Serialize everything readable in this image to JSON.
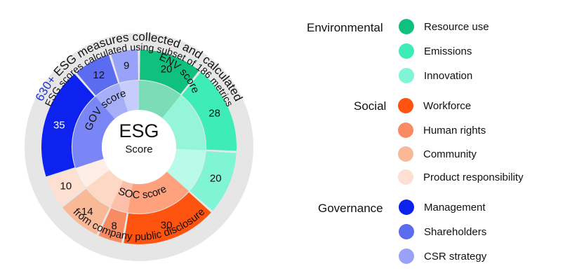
{
  "diagram": {
    "center_title": "ESG",
    "center_subtitle": "Score",
    "outer_text_prefix": "630+",
    "outer_text": " ESG measures collected and calculated",
    "outer_text_2": "ESG scores calculated using subset of 186 metrics",
    "bottom_text": "from company public disclosure",
    "inner_labels": {
      "env": "ENV score",
      "soc": "SOC score",
      "gov": "GOV score"
    },
    "segments": [
      {
        "name": "Resource use",
        "value": "20",
        "color": "#10c07e"
      },
      {
        "name": "Emissions",
        "value": "28",
        "color": "#3eecb8"
      },
      {
        "name": "Innovation",
        "value": "20",
        "color": "#7ff5d6"
      },
      {
        "name": "Workforce",
        "value": "30",
        "color": "#fe5410"
      },
      {
        "name": "Human rights",
        "value": "8",
        "color": "#f98b62"
      },
      {
        "name": "Community",
        "value": "14",
        "color": "#f9b896"
      },
      {
        "name": "Product responsibility",
        "value": "10",
        "color": "#fde0d2"
      },
      {
        "name": "Management",
        "value": "35",
        "color": "#0d21ef"
      },
      {
        "name": "Shareholders",
        "value": "12",
        "color": "#5b6cf0"
      },
      {
        "name": "CSR strategy",
        "value": "9",
        "color": "#98a2f8"
      }
    ],
    "colors": {
      "accent_text": "#2233cc",
      "outer_ring": "#e6e6e6"
    }
  },
  "legend": {
    "environmental": {
      "label": "Environmental",
      "items": [
        {
          "label": "Resource use",
          "color": "#10c07e"
        },
        {
          "label": "Emissions",
          "color": "#3eecb8"
        },
        {
          "label": "Innovation",
          "color": "#7ff5d6"
        }
      ]
    },
    "social": {
      "label": "Social",
      "items": [
        {
          "label": "Workforce",
          "color": "#fe5410"
        },
        {
          "label": "Human rights",
          "color": "#f98b62"
        },
        {
          "label": "Community",
          "color": "#f9b896"
        },
        {
          "label": "Product responsibility",
          "color": "#fde0d2"
        }
      ]
    },
    "governance": {
      "label": "Governance",
      "items": [
        {
          "label": "Management",
          "color": "#0d21ef"
        },
        {
          "label": "Shareholders",
          "color": "#5b6cf0"
        },
        {
          "label": "CSR strategy",
          "color": "#98a2f8"
        }
      ]
    }
  }
}
